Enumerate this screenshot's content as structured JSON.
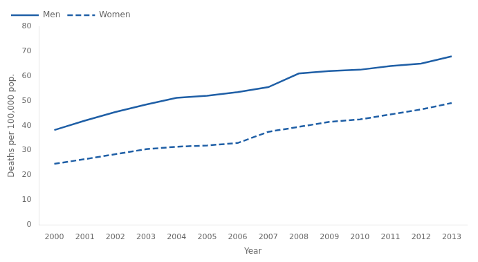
{
  "chart_data": {
    "type": "line",
    "x": [
      2000,
      2001,
      2002,
      2003,
      2004,
      2005,
      2006,
      2007,
      2008,
      2009,
      2010,
      2011,
      2012,
      2013
    ],
    "series": [
      {
        "name": "Men",
        "color": "#1f5fa6",
        "line_style": "solid",
        "values": [
          38.2,
          42.0,
          45.5,
          48.5,
          51.2,
          52.0,
          53.5,
          55.5,
          61.0,
          62.0,
          62.5,
          64.0,
          65.0,
          67.9
        ]
      },
      {
        "name": "Women",
        "color": "#1f5fa6",
        "line_style": "dashed",
        "values": [
          24.6,
          26.5,
          28.5,
          30.5,
          31.5,
          32.0,
          33.0,
          37.5,
          39.5,
          41.5,
          42.5,
          44.5,
          46.5,
          49.1
        ]
      }
    ],
    "xlabel": "Year",
    "ylabel": "Deaths per 100,000 pop.",
    "xlim": [
      1999.5,
      2013.5
    ],
    "xticks": [
      2000,
      2001,
      2002,
      2003,
      2004,
      2005,
      2006,
      2007,
      2008,
      2009,
      2010,
      2011,
      2012,
      2013
    ],
    "ylim": [
      0,
      80
    ],
    "yticks": [
      0,
      10,
      20,
      30,
      40,
      50,
      60,
      70,
      80
    ],
    "grid": false,
    "legend": "upper left"
  }
}
